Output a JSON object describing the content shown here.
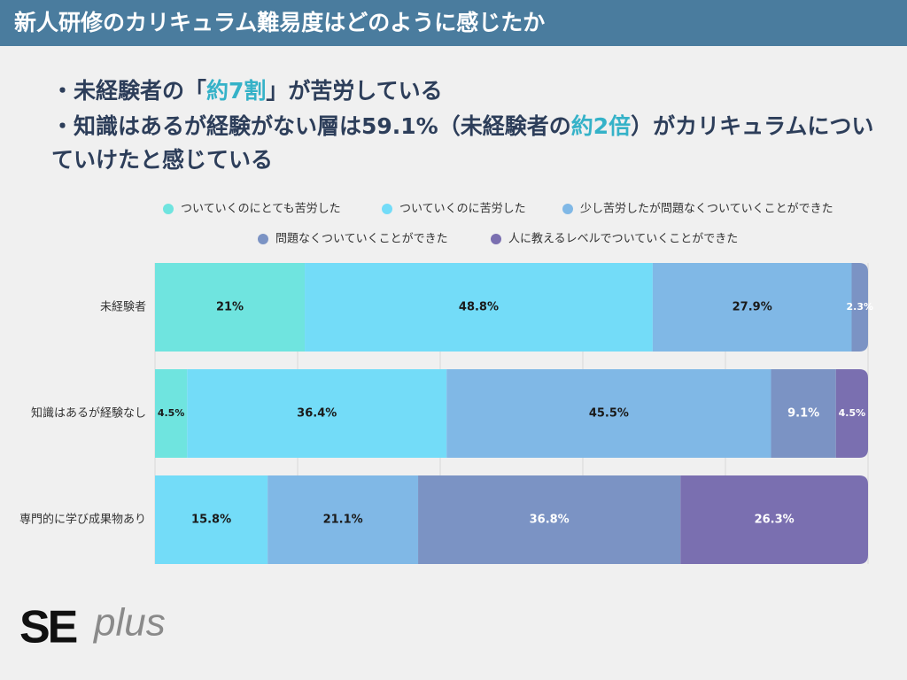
{
  "header": {
    "title": "新人研修のカリキュラム難易度はどのように感じたか"
  },
  "bullets": [
    [
      "・未経験者の「",
      "約7割",
      "」が苦労している"
    ],
    [
      "・知識はあるが経験がない層は59.1%（未経験者の",
      "約2倍",
      "）がカリキュラムについていけたと感じている"
    ]
  ],
  "chart_data": {
    "type": "bar",
    "orientation": "horizontal",
    "stacked": true,
    "categories": [
      "未経験者",
      "知識はあるが経験なし",
      "専門的に学び成果物あり"
    ],
    "series": [
      {
        "name": "ついていくのにとても苦労した",
        "color": "#6fe4df",
        "values": [
          21,
          4.5,
          null
        ],
        "value_labels": [
          "21%",
          "4.5%",
          null
        ]
      },
      {
        "name": "ついていくのに苦労した",
        "color": "#73dcf8",
        "values": [
          48.8,
          36.4,
          15.8
        ],
        "value_labels": [
          "48.8%",
          "36.4%",
          "15.8%"
        ]
      },
      {
        "name": "少し苦労したが問題なくついていくことができた",
        "color": "#80b8e6",
        "values": [
          27.9,
          45.5,
          21.1
        ],
        "value_labels": [
          "27.9%",
          "45.5%",
          "21.1%"
        ]
      },
      {
        "name": "問題なくついていくことができた",
        "color": "#7b93c4",
        "values": [
          2.3,
          9.1,
          36.8
        ],
        "value_labels": [
          "2.3%",
          "9.1%",
          "36.8%"
        ]
      },
      {
        "name": "人に教えるレベルでついていくことができた",
        "color": "#7a6fb0",
        "values": [
          null,
          4.5,
          26.3
        ],
        "value_labels": [
          null,
          "4.5%",
          "26.3%"
        ]
      }
    ],
    "xlim": [
      0,
      100
    ],
    "xticks": [
      0,
      20,
      40,
      60,
      80,
      100
    ],
    "grid": true
  },
  "logo": {
    "bold": "SE",
    "light": "plus"
  }
}
